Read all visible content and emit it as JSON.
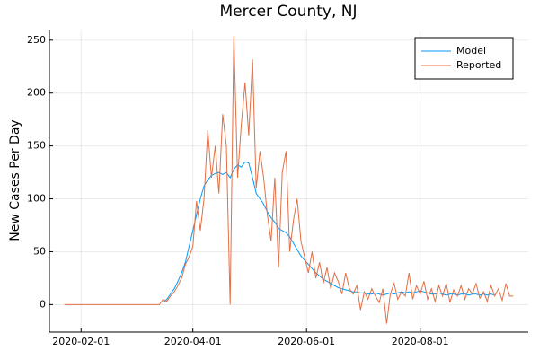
{
  "chart_data": {
    "type": "line",
    "title": "Mercer County, NJ",
    "y_label": "New Cases Per Day",
    "x": [
      "2020-01-23",
      "2020-03-10",
      "2020-03-12",
      "2020-03-14",
      "2020-03-16",
      "2020-03-18",
      "2020-03-20",
      "2020-03-22",
      "2020-03-24",
      "2020-03-26",
      "2020-03-28",
      "2020-03-30",
      "2020-04-01",
      "2020-04-03",
      "2020-04-05",
      "2020-04-07",
      "2020-04-09",
      "2020-04-11",
      "2020-04-13",
      "2020-04-15",
      "2020-04-17",
      "2020-04-19",
      "2020-04-21",
      "2020-04-23",
      "2020-04-25",
      "2020-04-27",
      "2020-04-29",
      "2020-05-01",
      "2020-05-03",
      "2020-05-05",
      "2020-05-07",
      "2020-05-09",
      "2020-05-11",
      "2020-05-13",
      "2020-05-15",
      "2020-05-17",
      "2020-05-19",
      "2020-05-21",
      "2020-05-23",
      "2020-05-25",
      "2020-05-27",
      "2020-05-29",
      "2020-05-31",
      "2020-06-02",
      "2020-06-04",
      "2020-06-06",
      "2020-06-08",
      "2020-06-10",
      "2020-06-12",
      "2020-06-14",
      "2020-06-16",
      "2020-06-18",
      "2020-06-20",
      "2020-06-22",
      "2020-06-24",
      "2020-06-26",
      "2020-06-28",
      "2020-06-30",
      "2020-07-02",
      "2020-07-04",
      "2020-07-06",
      "2020-07-08",
      "2020-07-10",
      "2020-07-12",
      "2020-07-14",
      "2020-07-16",
      "2020-07-18",
      "2020-07-20",
      "2020-07-22",
      "2020-07-24",
      "2020-07-26",
      "2020-07-28",
      "2020-07-30",
      "2020-08-01",
      "2020-08-03",
      "2020-08-05",
      "2020-08-07",
      "2020-08-09",
      "2020-08-11",
      "2020-08-13",
      "2020-08-15",
      "2020-08-17",
      "2020-08-19",
      "2020-08-21",
      "2020-08-23",
      "2020-08-25",
      "2020-08-27",
      "2020-08-29",
      "2020-08-31",
      "2020-09-02",
      "2020-09-04",
      "2020-09-06",
      "2020-09-08",
      "2020-09-10",
      "2020-09-12",
      "2020-09-14",
      "2020-09-16",
      "2020-09-18",
      "2020-09-20"
    ],
    "series": [
      {
        "name": "Model",
        "color": "#009af9",
        "values": [
          null,
          null,
          null,
          null,
          2,
          5,
          10,
          15,
          22,
          30,
          40,
          55,
          70,
          85,
          100,
          112,
          118,
          122,
          124,
          125,
          123,
          125,
          120,
          128,
          132,
          130,
          135,
          134,
          120,
          105,
          100,
          95,
          88,
          82,
          78,
          72,
          70,
          68,
          64,
          58,
          52,
          46,
          42,
          38,
          34,
          30,
          27,
          24,
          22,
          20,
          18,
          16,
          15,
          14,
          13,
          12,
          12,
          11,
          11,
          10,
          10,
          11,
          10,
          9,
          10,
          11,
          10,
          11,
          12,
          11,
          12,
          11,
          12,
          13,
          12,
          11,
          10,
          10,
          11,
          10,
          9,
          10,
          10,
          9,
          10,
          10,
          9,
          10,
          10,
          9,
          10,
          9,
          10,
          9,
          null,
          null,
          null,
          null,
          null
        ]
      },
      {
        "name": "Reported",
        "color": "#e26f46",
        "values": [
          0,
          0,
          0,
          0,
          5,
          3,
          8,
          12,
          18,
          25,
          38,
          45,
          55,
          98,
          70,
          100,
          165,
          120,
          150,
          105,
          180,
          150,
          0,
          254,
          120,
          170,
          210,
          160,
          232,
          110,
          145,
          120,
          85,
          60,
          120,
          35,
          125,
          145,
          50,
          80,
          100,
          60,
          45,
          30,
          50,
          25,
          40,
          20,
          35,
          15,
          30,
          22,
          10,
          30,
          15,
          10,
          18,
          -5,
          12,
          5,
          15,
          8,
          2,
          15,
          -18,
          10,
          20,
          5,
          12,
          8,
          30,
          5,
          18,
          10,
          22,
          5,
          15,
          3,
          18,
          8,
          20,
          2,
          14,
          8,
          18,
          5,
          15,
          10,
          20,
          6,
          12,
          3,
          18,
          8,
          15,
          4,
          20,
          8,
          8
        ]
      }
    ],
    "xlim": [
      "2020-01-15",
      "2020-09-28"
    ],
    "xticks": [
      "2020-02-01",
      "2020-04-01",
      "2020-06-01",
      "2020-08-01"
    ],
    "ylim": [
      -26,
      260
    ],
    "yticks": [
      0,
      50,
      100,
      150,
      200,
      250
    ],
    "grid": true,
    "legend": "top-right"
  }
}
